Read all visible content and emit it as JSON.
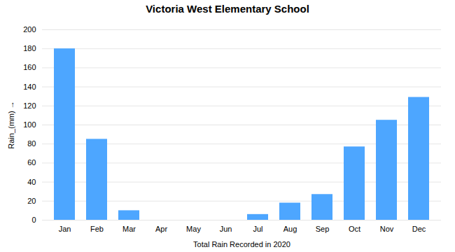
{
  "chart_data": {
    "type": "bar",
    "title": "Victoria West Elementary School",
    "xlabel": "Total Rain Recorded in 2020",
    "ylabel": "Rain_(mm)",
    "categories": [
      "Jan",
      "Feb",
      "Mar",
      "Apr",
      "May",
      "Jun",
      "Jul",
      "Aug",
      "Sep",
      "Oct",
      "Nov",
      "Dec"
    ],
    "values": [
      180,
      85,
      10,
      0,
      0,
      0,
      6,
      18,
      27,
      77,
      105,
      129
    ],
    "color": "#4da6ff",
    "ylim": [
      0,
      200
    ],
    "yticks": [
      0,
      20,
      40,
      60,
      80,
      100,
      120,
      140,
      160,
      180,
      200
    ],
    "grid": true
  }
}
